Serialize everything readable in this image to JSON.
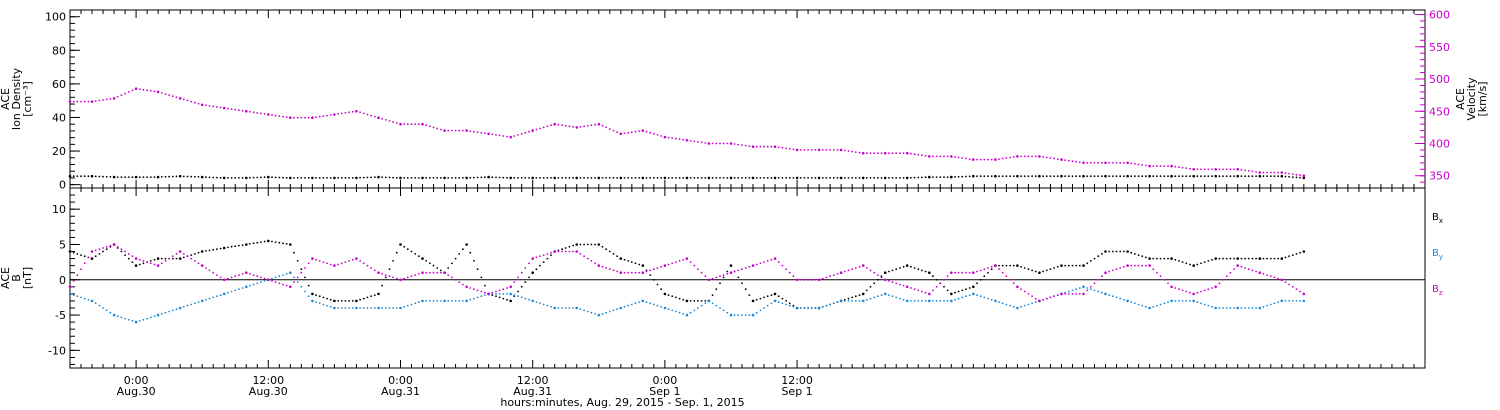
{
  "chart_data": [
    {
      "type": "scatter",
      "ylabel_lines": [
        "ACE",
        "Ion Density",
        "[cm⁻³]"
      ],
      "y2label_lines": [
        "ACE",
        "Velocity",
        "[km/s]"
      ],
      "ylim": [
        -2,
        104
      ],
      "yticks": [
        0,
        20,
        40,
        60,
        80,
        100
      ],
      "y2lim": [
        331,
        607
      ],
      "y2ticks": [
        350,
        400,
        450,
        500,
        550,
        600
      ],
      "series": [
        {
          "axis": "left",
          "color": "#000000",
          "x": [
            -6,
            -4,
            -2,
            0,
            2,
            4,
            6,
            8,
            10,
            12,
            14,
            16,
            18,
            20,
            22,
            24,
            26,
            28,
            30,
            32,
            34,
            36,
            38,
            40,
            42,
            44,
            46,
            48,
            50,
            52,
            54,
            56,
            58,
            60,
            62,
            64,
            66,
            68,
            70,
            72,
            74,
            76,
            78,
            80,
            82,
            84,
            86,
            88,
            90,
            92,
            94,
            96,
            98,
            100,
            102,
            104,
            106
          ],
          "y": [
            5,
            5,
            4.5,
            4.5,
            4.5,
            5,
            4.5,
            4,
            4,
            4.5,
            4,
            4,
            4,
            4,
            4.5,
            4,
            4,
            4,
            4,
            4.5,
            4,
            4,
            4,
            4,
            4,
            4,
            4,
            4,
            4,
            4,
            4,
            4,
            4,
            4,
            4,
            4,
            4,
            4,
            4,
            4.5,
            4.5,
            5,
            5,
            5,
            5,
            5,
            5,
            5,
            5,
            5,
            5,
            5,
            5,
            5,
            5,
            5,
            4
          ]
        },
        {
          "axis": "right",
          "color": "#cc00cc",
          "x": [
            -6,
            -4,
            -2,
            0,
            2,
            4,
            6,
            8,
            10,
            12,
            14,
            16,
            18,
            20,
            22,
            24,
            26,
            28,
            30,
            32,
            34,
            36,
            38,
            40,
            42,
            44,
            46,
            48,
            50,
            52,
            54,
            56,
            58,
            60,
            62,
            64,
            66,
            68,
            70,
            72,
            74,
            76,
            78,
            80,
            82,
            84,
            86,
            88,
            90,
            92,
            94,
            96,
            98,
            100,
            102,
            104,
            106
          ],
          "y": [
            465,
            465,
            470,
            485,
            480,
            470,
            460,
            455,
            450,
            445,
            440,
            440,
            445,
            450,
            440,
            430,
            430,
            420,
            420,
            415,
            410,
            420,
            430,
            425,
            430,
            415,
            420,
            410,
            405,
            400,
            400,
            395,
            395,
            390,
            390,
            390,
            385,
            385,
            385,
            380,
            380,
            375,
            375,
            380,
            380,
            375,
            370,
            370,
            370,
            365,
            365,
            360,
            360,
            360,
            355,
            355,
            350
          ]
        }
      ]
    },
    {
      "type": "scatter",
      "ylabel_lines": [
        "ACE",
        "B",
        "[nT]"
      ],
      "ylim": [
        -12.5,
        13
      ],
      "yticks": [
        -10,
        -5,
        0,
        5,
        10
      ],
      "zero_line": true,
      "series": [
        {
          "name": "Bx",
          "name_main": "B",
          "name_sub": "x",
          "color": "#000000",
          "x": [
            -6,
            -4,
            -2,
            0,
            2,
            4,
            6,
            8,
            10,
            12,
            14,
            16,
            18,
            20,
            22,
            24,
            26,
            28,
            30,
            32,
            34,
            36,
            38,
            40,
            42,
            44,
            46,
            48,
            50,
            52,
            54,
            56,
            58,
            60,
            62,
            64,
            66,
            68,
            70,
            72,
            74,
            76,
            78,
            80,
            82,
            84,
            86,
            88,
            90,
            92,
            94,
            96,
            98,
            100,
            102,
            104,
            106
          ],
          "y": [
            4,
            3,
            5,
            2,
            3,
            3,
            4,
            4.5,
            5,
            5.5,
            5,
            -2,
            -3,
            -3,
            -2,
            5,
            3,
            1,
            5,
            -2,
            -3,
            1,
            4,
            5,
            5,
            3,
            2,
            -2,
            -3,
            -3,
            2,
            -3,
            -2,
            -4,
            -4,
            -3,
            -2,
            1,
            2,
            1,
            -2,
            -1,
            2,
            2,
            1,
            2,
            2,
            4,
            4,
            3,
            3,
            2,
            3,
            3,
            3,
            3,
            4
          ]
        },
        {
          "name": "By",
          "name_main": "B",
          "name_sub": "y",
          "color": "#1a8ad8",
          "x": [
            -6,
            -4,
            -2,
            0,
            2,
            4,
            6,
            8,
            10,
            12,
            14,
            16,
            18,
            20,
            22,
            24,
            26,
            28,
            30,
            32,
            34,
            36,
            38,
            40,
            42,
            44,
            46,
            48,
            50,
            52,
            54,
            56,
            58,
            60,
            62,
            64,
            66,
            68,
            70,
            72,
            74,
            76,
            78,
            80,
            82,
            84,
            86,
            88,
            90,
            92,
            94,
            96,
            98,
            100,
            102,
            104,
            106
          ],
          "y": [
            -2,
            -3,
            -5,
            -6,
            -5,
            -4,
            -3,
            -2,
            -1,
            0,
            1,
            -3,
            -4,
            -4,
            -4,
            -4,
            -3,
            -3,
            -3,
            -2,
            -2,
            -3,
            -4,
            -4,
            -5,
            -4,
            -3,
            -4,
            -5,
            -3,
            -5,
            -5,
            -3,
            -4,
            -4,
            -3,
            -3,
            -2,
            -3,
            -3,
            -3,
            -2,
            -3,
            -4,
            -3,
            -2,
            -1,
            -2,
            -3,
            -4,
            -3,
            -3,
            -4,
            -4,
            -4,
            -3,
            -3
          ]
        },
        {
          "name": "Bz",
          "name_main": "B",
          "name_sub": "z",
          "color": "#cc00cc",
          "x": [
            -6,
            -4,
            -2,
            0,
            2,
            4,
            6,
            8,
            10,
            12,
            14,
            16,
            18,
            20,
            22,
            24,
            26,
            28,
            30,
            32,
            34,
            36,
            38,
            40,
            42,
            44,
            46,
            48,
            50,
            52,
            54,
            56,
            58,
            60,
            62,
            64,
            66,
            68,
            70,
            72,
            74,
            76,
            78,
            80,
            82,
            84,
            86,
            88,
            90,
            92,
            94,
            96,
            98,
            100,
            102,
            104,
            106
          ],
          "y": [
            -1,
            4,
            5,
            3,
            2,
            4,
            2,
            0,
            1,
            0,
            -1,
            3,
            2,
            3,
            1,
            0,
            1,
            1,
            -1,
            -2,
            -1,
            3,
            4,
            4,
            2,
            1,
            1,
            2,
            3,
            0,
            1,
            2,
            3,
            0,
            0,
            1,
            2,
            0,
            -1,
            -2,
            1,
            1,
            2,
            -1,
            -3,
            -2,
            -2,
            1,
            2,
            2,
            -1,
            -2,
            -1,
            2,
            1,
            0,
            -2
          ]
        }
      ]
    }
  ],
  "x_axis": {
    "xlim": [
      -6,
      117
    ],
    "ticks": [
      {
        "x": 0,
        "line1": "0:00",
        "line2": "Aug.30"
      },
      {
        "x": 12,
        "line1": "12:00",
        "line2": "Aug.30"
      },
      {
        "x": 24,
        "line1": "0:00",
        "line2": "Aug.31"
      },
      {
        "x": 36,
        "line1": "12:00",
        "line2": "Aug.31"
      },
      {
        "x": 48,
        "line1": "0:00",
        "line2": "Sep 1"
      },
      {
        "x": 60,
        "line1": "12:00",
        "line2": "Sep 1"
      }
    ],
    "xlabel": "hours:minutes, Aug. 29, 2015 - Sep.  1, 2015"
  }
}
